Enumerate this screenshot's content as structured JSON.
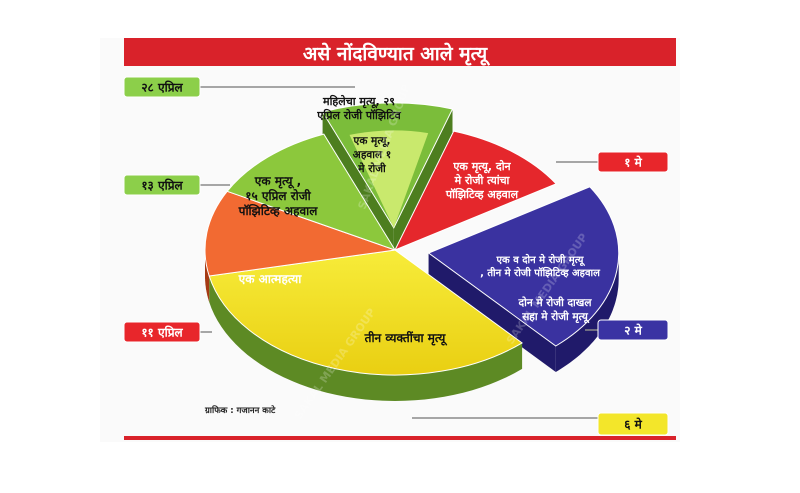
{
  "chart_data": {
    "type": "pie",
    "title": "असे नोंदविण्यात आले मृत्यू",
    "credit": "ग्राफिक : गजानन काटे",
    "watermark": "SAKAL MEDIA GROUP",
    "colors": {
      "title_bar": "#d9222a",
      "date_box_green": "#8ccf4a",
      "date_box_red": "#e8262b",
      "date_box_blue": "#3a33a3",
      "date_box_yellow": "#f3e62a",
      "rule_line": "#8a8a8a"
    },
    "slices": [
      {
        "label": "महिलेचा मृत्यू, २९ एप्रिल रोजी पॉझिटिव",
        "value": 1,
        "date": "२८ एप्रिल",
        "color": "#7bbd3a",
        "shade": "#4d7e1f",
        "exploded": true,
        "sublabel": "एक मृत्यू, अहवाल १ मे रोजी",
        "sublabel_color": "#c9e96d"
      },
      {
        "label": "एक मृत्यू, दोन मे रोजी त्यांचा पॉझिटिव्ह अहवाल",
        "value": 1,
        "date": "१ मे",
        "color": "#e5272c",
        "shade": "#9e1317"
      },
      {
        "label": "एक व दोन मे रोजी मृत्यू , तीन मे रोजी पॉझिटिव्ह अहवाल",
        "value": 2,
        "date": "२ मे",
        "color": "#3a32a0",
        "shade": "#201a6a",
        "exploded": true,
        "sublabel": "दोन मे रोजी दाखल सहा मे रोजी मृत्यू"
      },
      {
        "label": "तीन व्यक्तींचा मृत्यू",
        "value": 3,
        "date": "६ मे",
        "color": "#f4e523",
        "shade": "#5d8a24"
      },
      {
        "label": "एक आत्महत्या",
        "value": 1,
        "date": "११ एप्रिल",
        "color": "#f26a32",
        "shade": "#a53a14"
      },
      {
        "label": "एक मृत्यू , १५ एप्रिल रोजी पॉझिटिव्ह अहवाल",
        "value": 1,
        "date": "१३ एप्रिल",
        "color": "#8cc83c",
        "shade": "#55821c"
      }
    ]
  }
}
